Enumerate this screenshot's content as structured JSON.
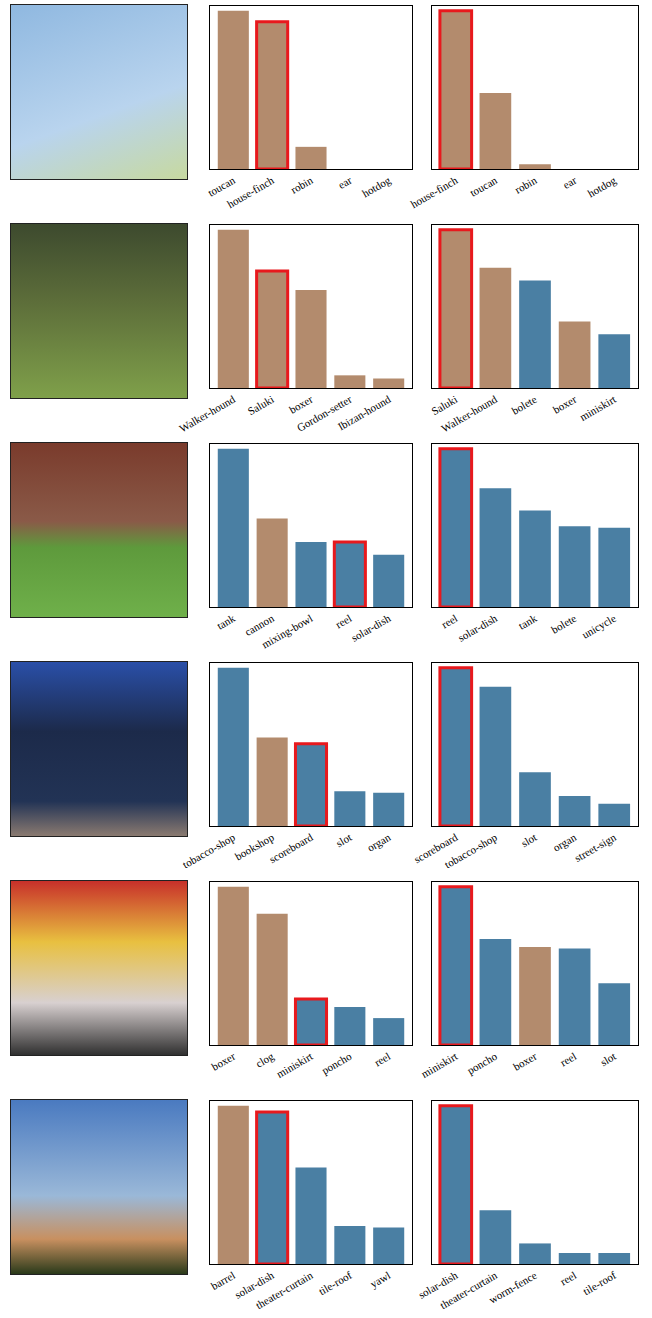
{
  "chart_data": [
    {
      "type": "bar",
      "categories": [
        "toucan",
        "house-finch",
        "robin",
        "ear",
        "hotdog"
      ],
      "values": [
        1.0,
        0.93,
        0.14,
        0.0,
        0.0
      ],
      "colors": [
        "#b38b6d",
        "#b38b6d",
        "#b38b6d",
        "#b38b6d",
        "#b38b6d"
      ],
      "highlight": "house-finch",
      "ylim": [
        0,
        1.03
      ],
      "tick_labels": "x"
    },
    {
      "type": "bar",
      "categories": [
        "house-finch",
        "toucan",
        "robin",
        "ear",
        "hotdog"
      ],
      "values": [
        1.0,
        0.48,
        0.03,
        0.0,
        0.0
      ],
      "colors": [
        "#b38b6d",
        "#b38b6d",
        "#b38b6d",
        "#b38b6d",
        "#b38b6d"
      ],
      "highlight": "house-finch",
      "ylim": [
        0,
        1.03
      ],
      "tick_labels": "x"
    },
    {
      "type": "bar",
      "categories": [
        "Walker-hound",
        "Saluki",
        "boxer",
        "Gordon-setter",
        "Ibizan-hound"
      ],
      "values": [
        1.0,
        0.74,
        0.62,
        0.08,
        0.06
      ],
      "colors": [
        "#b38b6d",
        "#b38b6d",
        "#b38b6d",
        "#b38b6d",
        "#b38b6d"
      ],
      "highlight": "Saluki",
      "ylim": [
        0,
        1.03
      ],
      "tick_labels": "x"
    },
    {
      "type": "bar",
      "categories": [
        "Saluki",
        "Walker-hound",
        "bolete",
        "boxer",
        "miniskirt"
      ],
      "values": [
        1.0,
        0.76,
        0.68,
        0.42,
        0.34
      ],
      "colors": [
        "#b38b6d",
        "#b38b6d",
        "#4a7fa3",
        "#b38b6d",
        "#4a7fa3"
      ],
      "highlight": "Saluki",
      "ylim": [
        0,
        1.03
      ],
      "tick_labels": "x"
    },
    {
      "type": "bar",
      "categories": [
        "tank",
        "cannon",
        "mixing-bowl",
        "reel",
        "solar-dish"
      ],
      "values": [
        1.0,
        0.56,
        0.41,
        0.41,
        0.33
      ],
      "colors": [
        "#4a7fa3",
        "#b38b6d",
        "#4a7fa3",
        "#4a7fa3",
        "#4a7fa3"
      ],
      "highlight": "reel",
      "ylim": [
        0,
        1.03
      ],
      "tick_labels": "x"
    },
    {
      "type": "bar",
      "categories": [
        "reel",
        "solar-dish",
        "tank",
        "bolete",
        "unicycle"
      ],
      "values": [
        1.0,
        0.75,
        0.61,
        0.51,
        0.5
      ],
      "colors": [
        "#4a7fa3",
        "#4a7fa3",
        "#4a7fa3",
        "#4a7fa3",
        "#4a7fa3"
      ],
      "highlight": "reel",
      "ylim": [
        0,
        1.03
      ],
      "tick_labels": "x"
    },
    {
      "type": "bar",
      "categories": [
        "tobacco-shop",
        "bookshop",
        "scoreboard",
        "slot",
        "organ"
      ],
      "values": [
        1.0,
        0.56,
        0.52,
        0.22,
        0.21
      ],
      "colors": [
        "#4a7fa3",
        "#b38b6d",
        "#4a7fa3",
        "#4a7fa3",
        "#4a7fa3"
      ],
      "highlight": "scoreboard",
      "ylim": [
        0,
        1.03
      ],
      "tick_labels": "x"
    },
    {
      "type": "bar",
      "categories": [
        "scoreboard",
        "tobacco-shop",
        "slot",
        "organ",
        "street-sign"
      ],
      "values": [
        1.0,
        0.88,
        0.34,
        0.19,
        0.14
      ],
      "colors": [
        "#4a7fa3",
        "#4a7fa3",
        "#4a7fa3",
        "#4a7fa3",
        "#4a7fa3"
      ],
      "highlight": "scoreboard",
      "ylim": [
        0,
        1.03
      ],
      "tick_labels": "x"
    },
    {
      "type": "bar",
      "categories": [
        "boxer",
        "clog",
        "miniskirt",
        "poncho",
        "reel"
      ],
      "values": [
        1.0,
        0.83,
        0.29,
        0.24,
        0.17
      ],
      "colors": [
        "#b38b6d",
        "#b38b6d",
        "#4a7fa3",
        "#4a7fa3",
        "#4a7fa3"
      ],
      "highlight": "miniskirt",
      "ylim": [
        0,
        1.03
      ],
      "tick_labels": "x"
    },
    {
      "type": "bar",
      "categories": [
        "miniskirt",
        "poncho",
        "boxer",
        "reel",
        "slot"
      ],
      "values": [
        1.0,
        0.67,
        0.62,
        0.61,
        0.39
      ],
      "colors": [
        "#4a7fa3",
        "#4a7fa3",
        "#b38b6d",
        "#4a7fa3",
        "#4a7fa3"
      ],
      "highlight": "miniskirt",
      "ylim": [
        0,
        1.03
      ],
      "tick_labels": "x"
    },
    {
      "type": "bar",
      "categories": [
        "barrel",
        "solar-dish",
        "theater-curtain",
        "tile-roof",
        "yawl"
      ],
      "values": [
        1.0,
        0.96,
        0.61,
        0.24,
        0.23
      ],
      "colors": [
        "#b38b6d",
        "#4a7fa3",
        "#4a7fa3",
        "#4a7fa3",
        "#4a7fa3"
      ],
      "highlight": "solar-dish",
      "ylim": [
        0,
        1.03
      ],
      "tick_labels": "x"
    },
    {
      "type": "bar",
      "categories": [
        "solar-dish",
        "theater-curtain",
        "worm-fence",
        "reel",
        "tile-roof"
      ],
      "values": [
        1.0,
        0.34,
        0.13,
        0.07,
        0.07
      ],
      "colors": [
        "#4a7fa3",
        "#4a7fa3",
        "#4a7fa3",
        "#4a7fa3",
        "#4a7fa3"
      ],
      "highlight": "solar-dish",
      "ylim": [
        0,
        1.03
      ],
      "tick_labels": "x"
    }
  ]
}
